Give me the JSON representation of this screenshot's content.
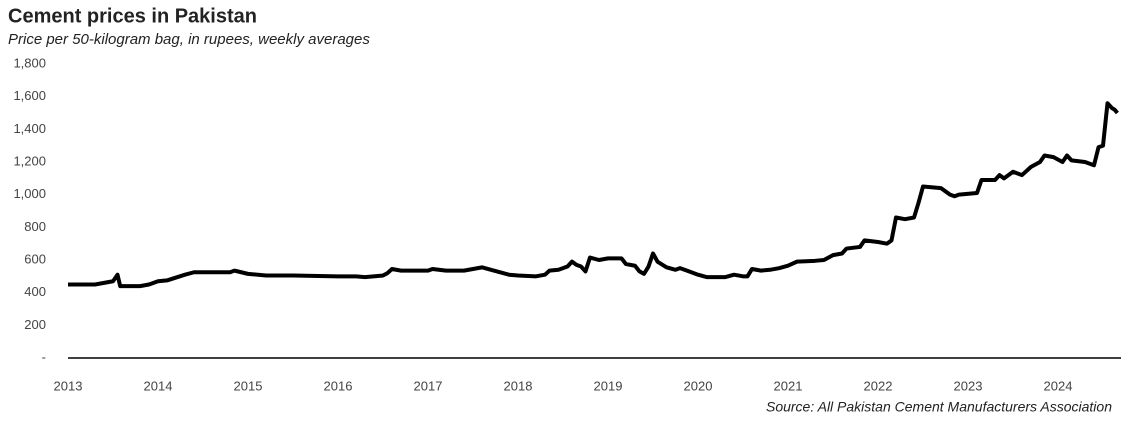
{
  "chart_data": {
    "type": "line",
    "title": "Cement prices in Pakistan",
    "subtitle": "Price per 50-kilogram bag, in rupees, weekly averages",
    "source": "Source: All Pakistan Cement Manufacturers Association",
    "x": [
      2013.0,
      2013.3,
      2013.4,
      2013.5,
      2013.55,
      2013.58,
      2013.8,
      2013.9,
      2014.0,
      2014.1,
      2014.3,
      2014.4,
      2014.6,
      2014.8,
      2014.85,
      2015.0,
      2015.2,
      2015.5,
      2016.0,
      2016.2,
      2016.3,
      2016.5,
      2016.55,
      2016.6,
      2016.7,
      2017.0,
      2017.05,
      2017.2,
      2017.4,
      2017.6,
      2017.7,
      2017.9,
      2018.0,
      2018.2,
      2018.3,
      2018.35,
      2018.45,
      2018.55,
      2018.6,
      2018.65,
      2018.7,
      2018.75,
      2018.8,
      2018.9,
      2019.0,
      2019.15,
      2019.2,
      2019.3,
      2019.35,
      2019.4,
      2019.45,
      2019.5,
      2019.55,
      2019.65,
      2019.75,
      2019.8,
      2019.9,
      2020.0,
      2020.1,
      2020.3,
      2020.4,
      2020.5,
      2020.55,
      2020.6,
      2020.7,
      2020.8,
      2020.9,
      2021.0,
      2021.1,
      2021.3,
      2021.4,
      2021.5,
      2021.6,
      2021.65,
      2021.8,
      2021.85,
      2022.0,
      2022.1,
      2022.15,
      2022.2,
      2022.3,
      2022.4,
      2022.45,
      2022.5,
      2022.7,
      2022.8,
      2022.85,
      2022.9,
      2023.1,
      2023.15,
      2023.3,
      2023.35,
      2023.4,
      2023.5,
      2023.6,
      2023.7,
      2023.8,
      2023.85,
      2023.95,
      2024.05,
      2024.1,
      2024.15,
      2024.3,
      2024.4,
      2024.45,
      2024.5,
      2024.55,
      2024.6,
      2024.63,
      2024.66
    ],
    "series": [
      {
        "name": "Price",
        "color": "#000000",
        "values": [
          450,
          450,
          460,
          470,
          510,
          440,
          440,
          450,
          470,
          475,
          510,
          525,
          525,
          525,
          535,
          515,
          505,
          505,
          500,
          500,
          495,
          505,
          520,
          545,
          535,
          535,
          545,
          535,
          535,
          555,
          540,
          510,
          505,
          500,
          510,
          535,
          540,
          560,
          590,
          570,
          560,
          530,
          615,
          600,
          610,
          610,
          575,
          565,
          530,
          515,
          560,
          640,
          590,
          555,
          540,
          550,
          530,
          510,
          495,
          495,
          510,
          500,
          500,
          545,
          535,
          540,
          550,
          565,
          590,
          595,
          600,
          630,
          640,
          670,
          680,
          720,
          710,
          700,
          720,
          860,
          850,
          860,
          950,
          1050,
          1040,
          1000,
          990,
          1000,
          1010,
          1090,
          1090,
          1120,
          1100,
          1140,
          1120,
          1170,
          1200,
          1240,
          1230,
          1200,
          1240,
          1210,
          1200,
          1180,
          1290,
          1300,
          1560,
          1530,
          1520,
          1500
        ]
      }
    ],
    "xlim": [
      2013,
      2024.7
    ],
    "xticks": [
      2013,
      2014,
      2015,
      2016,
      2017,
      2018,
      2019,
      2020,
      2021,
      2022,
      2023,
      2024
    ],
    "ylim": [
      0,
      1800
    ],
    "yticks": [
      {
        "value": 0,
        "label": "-"
      },
      200,
      400,
      600,
      800,
      {
        "value": 1000,
        "label": "1,000"
      },
      {
        "value": 1200,
        "label": "1,200"
      },
      {
        "value": 1400,
        "label": "1,400"
      },
      {
        "value": 1600,
        "label": "1,600"
      },
      {
        "value": 1800,
        "label": "1,800"
      }
    ],
    "grid": false
  }
}
